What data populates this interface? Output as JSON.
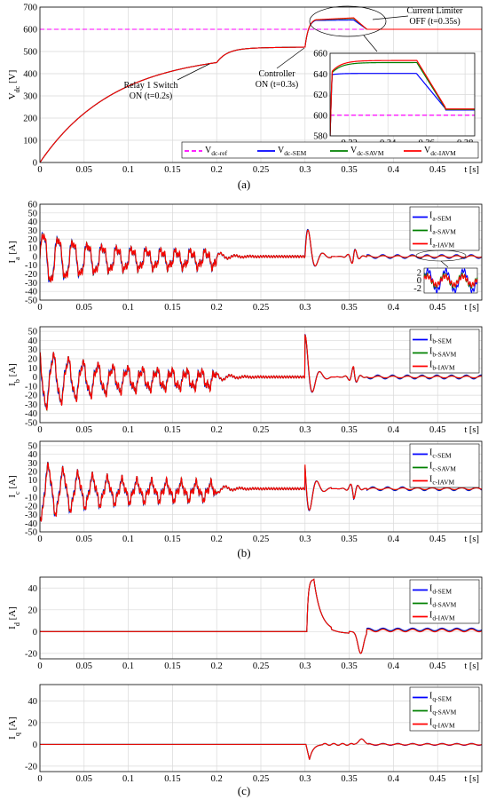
{
  "colors": {
    "sem": "#0000ff",
    "savm": "#008000",
    "iavm": "#ff0000",
    "ref": "#ff00ff"
  },
  "captions": {
    "a": "(a)",
    "b": "(b)",
    "c": "(c)"
  },
  "x_unit": "t [s]",
  "chart_data": [
    {
      "id": "vdc",
      "type": "line",
      "ylabel_main": "V",
      "ylabel_sub": "dc",
      "ylabel_unit": " [V]",
      "xlim": [
        0,
        0.5
      ],
      "ylim": [
        0,
        700
      ],
      "xticks": [
        0,
        0.05,
        0.1,
        0.15,
        0.2,
        0.25,
        0.3,
        0.35,
        0.4,
        0.45
      ],
      "xtick_labels": [
        "0",
        "0.05",
        "0.1",
        "0.15",
        "0.2",
        "0.25",
        "0.3",
        "0.35",
        "0.4",
        "0.45"
      ],
      "yticks": [
        0,
        100,
        200,
        300,
        400,
        500,
        600,
        700
      ],
      "ytick_labels": [
        "0",
        "100",
        "200",
        "300",
        "400",
        "500",
        "600",
        "700"
      ],
      "grid": true,
      "series": [
        {
          "name": "V",
          "sub": "dc-ref",
          "color": "ref",
          "dash": true
        },
        {
          "name": "V",
          "sub": "dc-SEM",
          "color": "sem"
        },
        {
          "name": "V",
          "sub": "dc-SAVM",
          "color": "savm"
        },
        {
          "name": "V",
          "sub": "dc-IAVM",
          "color": "iavm"
        }
      ],
      "legend": "bottom-right",
      "annotations": [
        {
          "lines": [
            "Relay 1 Switch",
            "ON (t=0.2s)"
          ]
        },
        {
          "lines": [
            "Controller",
            "ON (t=0.3s)"
          ]
        },
        {
          "lines": [
            "Current Limiter",
            "OFF (t=0.35s)"
          ]
        }
      ],
      "inset": {
        "xlim": [
          0.31,
          0.385
        ],
        "ylim": [
          580,
          660
        ],
        "xticks": [
          0.32,
          0.34,
          0.36,
          0.38
        ],
        "xtick_labels": [
          "0.32",
          "0.34",
          "0.36",
          "0.38"
        ],
        "yticks": [
          580,
          600,
          620,
          640,
          660
        ],
        "ytick_labels": [
          "580",
          "600",
          "620",
          "640",
          "660"
        ]
      }
    },
    {
      "id": "ia",
      "type": "line",
      "ylabel_main": "I",
      "ylabel_sub": "a",
      "ylabel_unit": " [A]",
      "xlim": [
        0,
        0.5
      ],
      "ylim": [
        -50,
        60
      ],
      "xticks": [
        0,
        0.05,
        0.1,
        0.15,
        0.2,
        0.25,
        0.3,
        0.35,
        0.4,
        0.45
      ],
      "xtick_labels": [
        "0",
        "0.05",
        "0.1",
        "0.15",
        "0.2",
        "0.25",
        "0.3",
        "0.35",
        "0.4",
        "0.45"
      ],
      "yticks": [
        -50,
        -40,
        -30,
        -20,
        -10,
        0,
        10,
        20,
        30,
        40,
        50,
        60
      ],
      "ytick_labels": [
        "-50",
        "-40",
        "-30",
        "-20",
        "-10",
        "0",
        "10",
        "20",
        "30",
        "40",
        "50",
        "60"
      ],
      "grid": true,
      "series": [
        {
          "name": "I",
          "sub": "a-SEM",
          "color": "sem"
        },
        {
          "name": "I",
          "sub": "a-SAVM",
          "color": "savm"
        },
        {
          "name": "I",
          "sub": "a-IAVM",
          "color": "iavm"
        }
      ],
      "legend": "top-right",
      "inset": {
        "yticks": [
          2,
          0,
          -2
        ],
        "ytick_labels": [
          "2",
          "0",
          "-2"
        ]
      }
    },
    {
      "id": "ib",
      "type": "line",
      "ylabel_main": "I",
      "ylabel_sub": "b",
      "ylabel_unit": " [A]",
      "xlim": [
        0,
        0.5
      ],
      "ylim": [
        -50,
        55
      ],
      "xticks": [
        0,
        0.05,
        0.1,
        0.15,
        0.2,
        0.25,
        0.3,
        0.35,
        0.4,
        0.45
      ],
      "xtick_labels": [
        "0",
        "0.05",
        "0.1",
        "0.15",
        "0.2",
        "0.25",
        "0.3",
        "0.35",
        "0.4",
        "0.45"
      ],
      "yticks": [
        -50,
        -40,
        -30,
        -20,
        -10,
        0,
        10,
        20,
        30,
        40,
        50
      ],
      "ytick_labels": [
        "-50",
        "-40",
        "-30",
        "-20",
        "-10",
        "0",
        "10",
        "20",
        "30",
        "40",
        "50"
      ],
      "grid": true,
      "series": [
        {
          "name": "I",
          "sub": "b-SEM",
          "color": "sem"
        },
        {
          "name": "I",
          "sub": "b-SAVM",
          "color": "savm"
        },
        {
          "name": "I",
          "sub": "b-IAVM",
          "color": "iavm"
        }
      ],
      "legend": "top-right"
    },
    {
      "id": "ic",
      "type": "line",
      "ylabel_main": "I",
      "ylabel_sub": "c",
      "ylabel_unit": " [A]",
      "xlim": [
        0,
        0.5
      ],
      "ylim": [
        -50,
        55
      ],
      "xticks": [
        0,
        0.05,
        0.1,
        0.15,
        0.2,
        0.25,
        0.3,
        0.35,
        0.4,
        0.45
      ],
      "xtick_labels": [
        "0",
        "0.05",
        "0.1",
        "0.15",
        "0.2",
        "0.25",
        "0.3",
        "0.35",
        "0.4",
        "0.45"
      ],
      "yticks": [
        -50,
        -40,
        -30,
        -20,
        -10,
        0,
        10,
        20,
        30,
        40,
        50
      ],
      "ytick_labels": [
        "-50",
        "-40",
        "-30",
        "-20",
        "-10",
        "0",
        "10",
        "20",
        "30",
        "40",
        "50"
      ],
      "grid": true,
      "series": [
        {
          "name": "I",
          "sub": "c-SEM",
          "color": "sem"
        },
        {
          "name": "I",
          "sub": "c-SAVM",
          "color": "savm"
        },
        {
          "name": "I",
          "sub": "c-IAVM",
          "color": "iavm"
        }
      ],
      "legend": "top-right"
    },
    {
      "id": "id",
      "type": "line",
      "ylabel_main": "I",
      "ylabel_sub": "d",
      "ylabel_unit": " [A]",
      "xlim": [
        0,
        0.5
      ],
      "ylim": [
        -25,
        50
      ],
      "xticks": [
        0,
        0.05,
        0.1,
        0.15,
        0.2,
        0.25,
        0.3,
        0.35,
        0.4,
        0.45
      ],
      "xtick_labels": [
        "0",
        "0.05",
        "0.1",
        "0.15",
        "0.2",
        "0.25",
        "0.3",
        "0.35",
        "0.4",
        "0.45"
      ],
      "yticks": [
        -20,
        0,
        20,
        40
      ],
      "ytick_labels": [
        "-20",
        "0",
        "20",
        "40"
      ],
      "grid": true,
      "series": [
        {
          "name": "I",
          "sub": "d-SEM",
          "color": "sem"
        },
        {
          "name": "I",
          "sub": "d-SAVM",
          "color": "savm"
        },
        {
          "name": "I",
          "sub": "d-IAVM",
          "color": "iavm"
        }
      ],
      "legend": "top-right"
    },
    {
      "id": "iq",
      "type": "line",
      "ylabel_main": "I",
      "ylabel_sub": "q",
      "ylabel_unit": " [A]",
      "xlim": [
        0,
        0.5
      ],
      "ylim": [
        -25,
        55
      ],
      "xticks": [
        0,
        0.05,
        0.1,
        0.15,
        0.2,
        0.25,
        0.3,
        0.35,
        0.4,
        0.45
      ],
      "xtick_labels": [
        "0",
        "0.05",
        "0.1",
        "0.15",
        "0.2",
        "0.25",
        "0.3",
        "0.35",
        "0.4",
        "0.45"
      ],
      "yticks": [
        -20,
        0,
        20,
        40
      ],
      "ytick_labels": [
        "-20",
        "0",
        "20",
        "40"
      ],
      "grid": true,
      "series": [
        {
          "name": "I",
          "sub": "q-SEM",
          "color": "sem"
        },
        {
          "name": "I",
          "sub": "q-SAVM",
          "color": "savm"
        },
        {
          "name": "I",
          "sub": "q-IAVM",
          "color": "iavm"
        }
      ],
      "legend": "top-right"
    }
  ]
}
